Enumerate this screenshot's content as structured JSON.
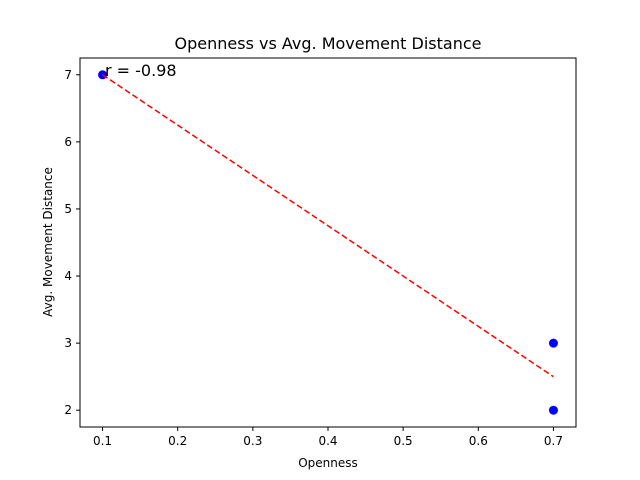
{
  "chart_data": {
    "type": "scatter",
    "title": "Openness vs Avg. Movement Distance",
    "xlabel": "Openness",
    "ylabel": "Avg. Movement Distance",
    "xlim": [
      0.07,
      0.73
    ],
    "ylim": [
      1.75,
      7.25
    ],
    "xticks": [
      "0.1",
      "0.2",
      "0.3",
      "0.4",
      "0.5",
      "0.6",
      "0.7"
    ],
    "yticks": [
      "2",
      "3",
      "4",
      "5",
      "6",
      "7"
    ],
    "points": [
      {
        "x": 0.1,
        "y": 7
      },
      {
        "x": 0.7,
        "y": 3
      },
      {
        "x": 0.7,
        "y": 2
      }
    ],
    "trendline": {
      "x": [
        0.1,
        0.7
      ],
      "y": [
        7.0,
        2.5
      ]
    },
    "annotation": "r = -0.98",
    "colors": {
      "points": "#0000ff",
      "trendline": "#ff0000"
    },
    "grid": false,
    "legend": "none"
  }
}
